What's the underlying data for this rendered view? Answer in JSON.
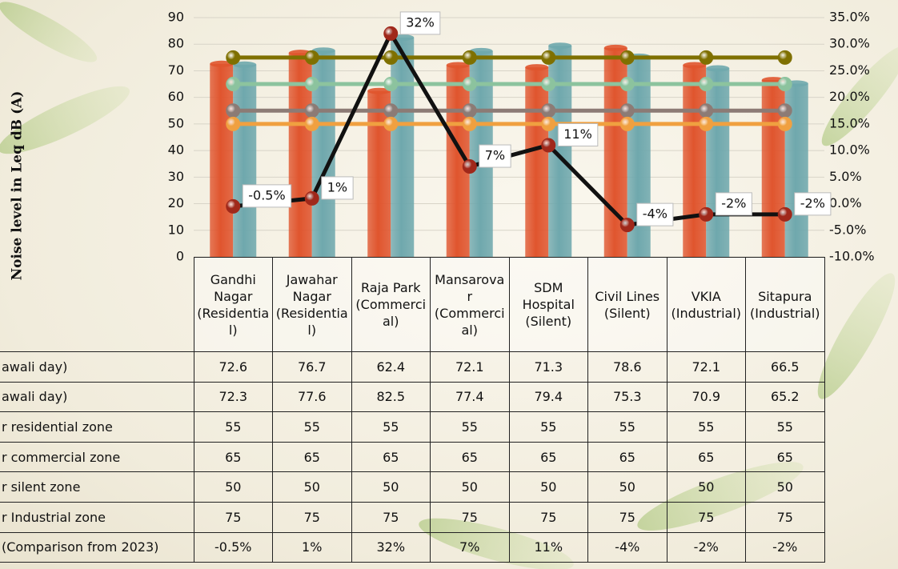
{
  "chart_data": {
    "type": "combo",
    "y_label": "Noise level in Leq dB (A)",
    "categories": [
      "Gandhi Nagar (Residential)",
      "Jawahar Nagar (Residential)",
      "Raja Park (Commercial)",
      "Mansarovar (Commercial)",
      "SDM Hospital (Silent)",
      "Civil Lines (Silent)",
      "VKIA (Industrial)",
      "Sitapura (Industrial)"
    ],
    "ylim": [
      0,
      90
    ],
    "yticks": [
      0,
      10,
      20,
      30,
      40,
      50,
      60,
      70,
      80,
      90
    ],
    "y2lim": [
      -10,
      35
    ],
    "y2ticks": [
      {
        "value": -10,
        "label": "-10.0%"
      },
      {
        "value": -5,
        "label": "-5.0%"
      },
      {
        "value": 0,
        "label": "0.0%"
      },
      {
        "value": 5,
        "label": "5.0%"
      },
      {
        "value": 10,
        "label": "10.0%"
      },
      {
        "value": 15,
        "label": "15.0%"
      },
      {
        "value": 20,
        "label": "20.0%"
      },
      {
        "value": 25,
        "label": "25.0%"
      },
      {
        "value": 30,
        "label": "30.0%"
      },
      {
        "value": 35,
        "label": "35.0%"
      }
    ],
    "grid": true,
    "series": [
      {
        "name": "awali day)",
        "type": "bar",
        "color": "#e0552e",
        "values": [
          72.6,
          76.7,
          62.4,
          72.1,
          71.3,
          78.6,
          72.1,
          66.5
        ]
      },
      {
        "name": "awali day)",
        "type": "bar",
        "color": "#6fa8ad",
        "values": [
          72.3,
          77.6,
          82.5,
          77.4,
          79.4,
          75.3,
          70.9,
          65.2
        ]
      },
      {
        "name": "r residential zone",
        "type": "line",
        "color": "#8c7b75",
        "values": [
          55,
          55,
          55,
          55,
          55,
          55,
          55,
          55
        ]
      },
      {
        "name": "r commercial zone",
        "type": "line",
        "color": "#8cc39e",
        "values": [
          65,
          65,
          65,
          65,
          65,
          65,
          65,
          65
        ]
      },
      {
        "name": "r silent zone",
        "type": "line",
        "color": "#f0a040",
        "values": [
          50,
          50,
          50,
          50,
          50,
          50,
          50,
          50
        ]
      },
      {
        "name": "r Industrial zone",
        "type": "line",
        "color": "#7f7000",
        "values": [
          75,
          75,
          75,
          75,
          75,
          75,
          75,
          75
        ]
      },
      {
        "name": "(Comparison from 2023)",
        "type": "line",
        "axis": "y2",
        "color": "#111111",
        "marker_color": "#a0281a",
        "values": [
          -0.5,
          1,
          32,
          7,
          11,
          -4,
          -2,
          -2
        ],
        "value_labels": [
          "-0.5%",
          "1%",
          "32%",
          "7%",
          "11%",
          "-4%",
          "-2%",
          "-2%"
        ]
      }
    ]
  }
}
